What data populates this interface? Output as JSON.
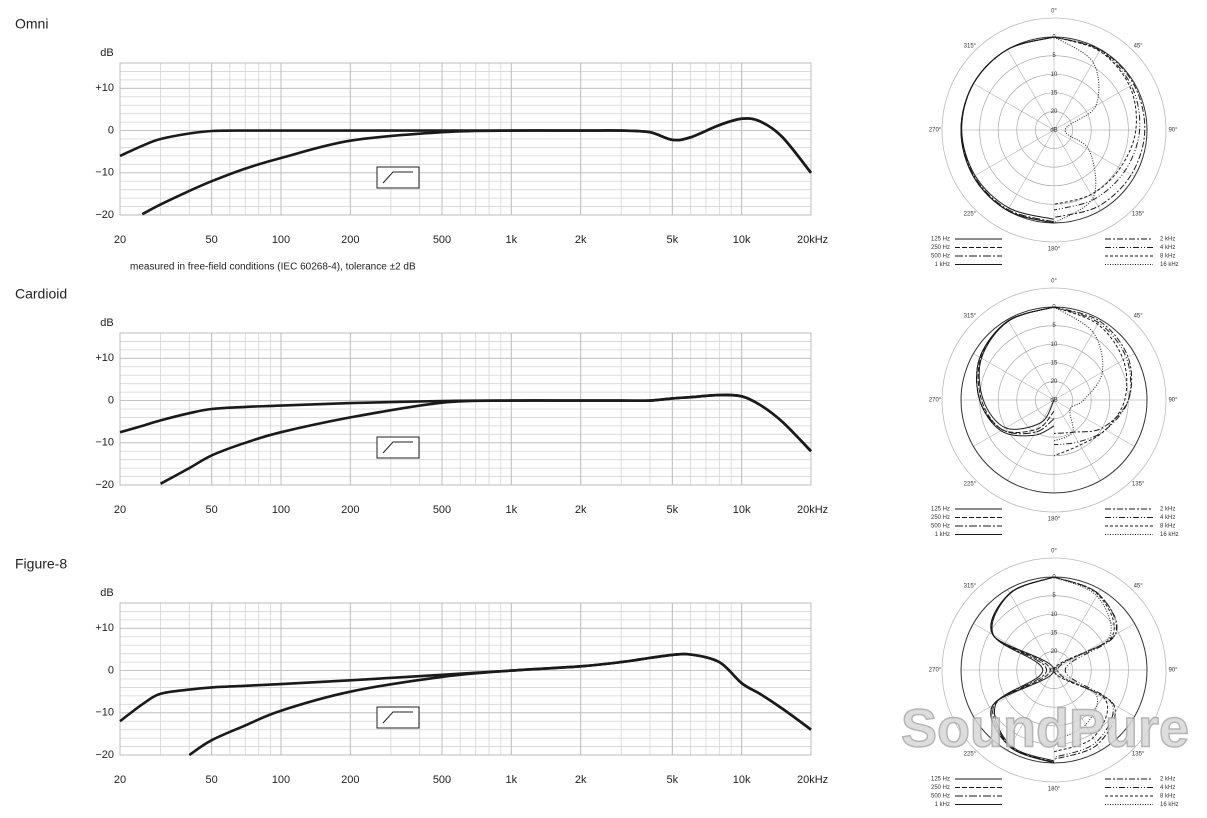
{
  "chart_data": [
    {
      "type": "line",
      "title": "Omni",
      "ylabel": "dB",
      "note": "measured in free-field conditions (IEC 60268-4), tolerance ±2 dB",
      "xscale": "log",
      "grid": true,
      "xlim": [
        20,
        20000
      ],
      "ylim": [
        -20,
        16
      ],
      "xticks": [
        20,
        50,
        100,
        200,
        500,
        {
          "value": 1000,
          "label": "1k"
        },
        {
          "value": 2000,
          "label": "2k"
        },
        {
          "value": 5000,
          "label": "5k"
        },
        {
          "value": 10000,
          "label": "10k"
        },
        {
          "value": 20000,
          "label": "20kHz"
        }
      ],
      "yticks": [
        {
          "value": -20,
          "label": "−20"
        },
        {
          "value": -10,
          "label": "−10"
        },
        0,
        {
          "value": 10,
          "label": "+10"
        }
      ],
      "x": [
        20,
        25,
        30,
        40,
        50,
        70,
        100,
        200,
        500,
        1000,
        2000,
        3000,
        4000,
        5000,
        6000,
        8000,
        10000,
        12000,
        15000,
        20000
      ],
      "series": [
        {
          "color": "#1a1a1a",
          "values": [
            -6,
            -3.6,
            -2,
            -0.7,
            -0.1,
            0,
            0,
            0,
            0,
            0,
            0,
            0,
            -0.4,
            -2.2,
            -1.6,
            1.3,
            2.8,
            2.2,
            -1.5,
            -10
          ]
        },
        {
          "color": "#1a1a1a",
          "values": [
            null,
            -19.8,
            -17.5,
            -14.3,
            -12,
            -9,
            -6.5,
            -2.4,
            -0.4,
            0,
            0,
            0,
            -0.4,
            -2.2,
            -1.6,
            1.3,
            2.8,
            2.2,
            -1.5,
            -10
          ]
        }
      ]
    },
    {
      "type": "polar",
      "theta": [
        -180,
        -150,
        -120,
        -90,
        -60,
        -30,
        0,
        30,
        60,
        90,
        120,
        150,
        180
      ],
      "rlim": [
        0,
        25
      ],
      "rticks": [
        0,
        5,
        10,
        15,
        20,
        {
          "value": 25,
          "label": "dB"
        }
      ],
      "angle_labels": [
        {
          "value": 0,
          "label": "0°"
        },
        {
          "value": 45,
          "label": "45°"
        },
        {
          "value": 90,
          "label": "90°"
        },
        {
          "value": 135,
          "label": "135°"
        },
        {
          "value": 180,
          "label": "180°"
        },
        {
          "value": 225,
          "label": "225°"
        },
        {
          "value": 270,
          "label": "270°"
        },
        {
          "value": 315,
          "label": "315°"
        }
      ],
      "series": [
        {
          "name": "125 Hz",
          "color": "#1a1a1a",
          "dash": "none",
          "values": [
            0,
            0,
            0,
            0,
            0,
            0,
            0,
            null,
            null,
            null,
            null,
            null,
            null
          ]
        },
        {
          "name": "250 Hz",
          "color": "#1a1a1a",
          "dash": "5 2",
          "values": [
            0,
            0,
            0,
            0,
            0,
            0,
            0,
            null,
            null,
            null,
            null,
            null,
            null
          ]
        },
        {
          "name": "500 Hz",
          "color": "#1a1a1a",
          "dash": "8 2 2 2",
          "values": [
            0.3,
            0.3,
            0.2,
            0.1,
            0,
            0,
            0,
            null,
            null,
            null,
            null,
            null,
            null
          ]
        },
        {
          "name": "1 kHz",
          "color": "#1a1a1a",
          "dash": "none",
          "values": [
            1,
            0.8,
            0.5,
            0.2,
            0,
            0,
            0,
            null,
            null,
            null,
            null,
            null,
            null
          ]
        },
        {
          "name": "2 kHz",
          "color": "#1a1a1a",
          "dash": "6 2 2 2",
          "values": [
            null,
            null,
            null,
            null,
            null,
            null,
            0,
            0.1,
            0.3,
            0.6,
            1,
            1.3,
            1.5
          ]
        },
        {
          "name": "4 kHz",
          "color": "#1a1a1a",
          "dash": "6 2 1 2 1 2",
          "values": [
            null,
            null,
            null,
            null,
            null,
            null,
            0,
            0.3,
            1,
            2,
            3,
            3.5,
            3.5
          ]
        },
        {
          "name": "8 kHz",
          "color": "#1a1a1a",
          "dash": "3 2",
          "values": [
            null,
            null,
            null,
            null,
            null,
            null,
            0,
            0.5,
            1.5,
            3,
            4.5,
            5,
            5
          ]
        },
        {
          "name": "16 kHz",
          "color": "#1a1a1a",
          "dash": "1 1.5",
          "values": [
            null,
            null,
            null,
            null,
            null,
            null,
            0,
            4,
            12,
            22,
            14,
            4,
            0
          ]
        }
      ]
    },
    {
      "type": "line",
      "title": "Cardioid",
      "ylabel": "dB",
      "xscale": "log",
      "grid": true,
      "xlim": [
        20,
        20000
      ],
      "ylim": [
        -20,
        16
      ],
      "xticks": [
        20,
        50,
        100,
        200,
        500,
        {
          "value": 1000,
          "label": "1k"
        },
        {
          "value": 2000,
          "label": "2k"
        },
        {
          "value": 5000,
          "label": "5k"
        },
        {
          "value": 10000,
          "label": "10k"
        },
        {
          "value": 20000,
          "label": "20kHz"
        }
      ],
      "yticks": [
        {
          "value": -20,
          "label": "−20"
        },
        {
          "value": -10,
          "label": "−10"
        },
        0,
        {
          "value": 10,
          "label": "+10"
        }
      ],
      "x": [
        20,
        25,
        30,
        40,
        50,
        70,
        100,
        200,
        500,
        1000,
        2000,
        3000,
        4000,
        5000,
        6000,
        8000,
        10000,
        12000,
        15000,
        20000
      ],
      "series": [
        {
          "color": "#1a1a1a",
          "values": [
            -7.5,
            -6,
            -4.7,
            -3,
            -2,
            -1.5,
            -1.2,
            -0.6,
            -0.1,
            0,
            0,
            0,
            0,
            0.5,
            0.8,
            1.3,
            1,
            -1,
            -5,
            -12
          ]
        },
        {
          "color": "#1a1a1a",
          "values": [
            null,
            null,
            -19.7,
            -16,
            -13,
            -10,
            -7.5,
            -4,
            -0.5,
            0,
            0,
            0,
            0,
            0.5,
            0.8,
            1.3,
            1,
            -1,
            -5,
            -12
          ]
        }
      ]
    },
    {
      "type": "polar",
      "theta": [
        -180,
        -150,
        -120,
        -90,
        -60,
        -30,
        0,
        30,
        60,
        90,
        120,
        150,
        180
      ],
      "rlim": [
        0,
        25
      ],
      "rticks": [
        0,
        5,
        10,
        15,
        20,
        {
          "value": 25,
          "label": "dB"
        }
      ],
      "angle_labels": [
        {
          "value": 0,
          "label": "0°"
        },
        {
          "value": 45,
          "label": "45°"
        },
        {
          "value": 90,
          "label": "90°"
        },
        {
          "value": 135,
          "label": "135°"
        },
        {
          "value": 180,
          "label": "180°"
        },
        {
          "value": 225,
          "label": "225°"
        },
        {
          "value": 270,
          "label": "270°"
        },
        {
          "value": 315,
          "label": "315°"
        }
      ],
      "series": [
        {
          "name": "125 Hz",
          "color": "#1a1a1a",
          "dash": "none",
          "values": [
            25,
            18,
            10,
            6,
            2.5,
            0.5,
            0,
            null,
            null,
            null,
            null,
            null,
            null
          ]
        },
        {
          "name": "250 Hz",
          "color": "#1a1a1a",
          "dash": "5 2",
          "values": [
            22,
            16,
            9,
            5.5,
            2.3,
            0.5,
            0,
            null,
            null,
            null,
            null,
            null,
            null
          ]
        },
        {
          "name": "500 Hz",
          "color": "#1a1a1a",
          "dash": "8 2 2 2",
          "values": [
            20,
            15,
            9,
            5,
            2,
            0.5,
            0,
            null,
            null,
            null,
            null,
            null,
            null
          ]
        },
        {
          "name": "1 kHz",
          "color": "#1a1a1a",
          "dash": "none",
          "values": [
            18,
            14,
            8.5,
            5,
            2,
            0.4,
            0,
            null,
            null,
            null,
            null,
            null,
            null
          ]
        },
        {
          "name": "2 kHz",
          "color": "#1a1a1a",
          "dash": "6 2 2 2",
          "values": [
            null,
            null,
            null,
            null,
            null,
            null,
            0,
            0.5,
            2,
            5,
            10,
            15,
            16
          ]
        },
        {
          "name": "4 kHz",
          "color": "#1a1a1a",
          "dash": "6 2 1 2 1 2",
          "values": [
            null,
            null,
            null,
            null,
            null,
            null,
            0,
            1,
            2.5,
            5,
            9,
            12,
            13
          ]
        },
        {
          "name": "8 kHz",
          "color": "#1a1a1a",
          "dash": "3 2",
          "values": [
            null,
            null,
            null,
            null,
            null,
            null,
            0,
            1.5,
            3.5,
            6,
            9,
            11,
            10
          ]
        },
        {
          "name": "16 kHz",
          "color": "#1a1a1a",
          "dash": "1 1.5",
          "values": [
            null,
            null,
            null,
            null,
            null,
            null,
            0,
            4,
            10,
            17,
            20,
            15,
            14
          ]
        }
      ]
    },
    {
      "type": "line",
      "title": "Figure-8",
      "ylabel": "dB",
      "xscale": "log",
      "grid": true,
      "xlim": [
        20,
        20000
      ],
      "ylim": [
        -20,
        16
      ],
      "xticks": [
        20,
        50,
        100,
        200,
        500,
        {
          "value": 1000,
          "label": "1k"
        },
        {
          "value": 2000,
          "label": "2k"
        },
        {
          "value": 5000,
          "label": "5k"
        },
        {
          "value": 10000,
          "label": "10k"
        },
        {
          "value": 20000,
          "label": "20kHz"
        }
      ],
      "yticks": [
        {
          "value": -20,
          "label": "−20"
        },
        {
          "value": -10,
          "label": "−10"
        },
        0,
        {
          "value": 10,
          "label": "+10"
        }
      ],
      "x": [
        20,
        25,
        30,
        40,
        50,
        70,
        100,
        200,
        500,
        1000,
        2000,
        3000,
        4000,
        5000,
        6000,
        8000,
        10000,
        12000,
        15000,
        20000
      ],
      "series": [
        {
          "color": "#1a1a1a",
          "values": [
            -12,
            -8,
            -5.5,
            -4.5,
            -4,
            -3.6,
            -3.2,
            -2.3,
            -1,
            0,
            1,
            2,
            3,
            3.7,
            3.8,
            2,
            -3,
            -5.5,
            -9,
            -14
          ]
        },
        {
          "color": "#1a1a1a",
          "values": [
            null,
            null,
            null,
            -20,
            -16.5,
            -13,
            -9.5,
            -5,
            -1.5,
            0,
            1,
            2,
            3,
            3.7,
            3.8,
            2,
            -3,
            -5.5,
            -9,
            -14
          ]
        }
      ]
    },
    {
      "type": "polar",
      "theta": [
        -180,
        -150,
        -120,
        -90,
        -60,
        -30,
        0,
        30,
        60,
        90,
        120,
        150,
        180
      ],
      "rlim": [
        0,
        25
      ],
      "rticks": [
        0,
        5,
        10,
        15,
        20,
        {
          "value": 25,
          "label": "dB"
        }
      ],
      "angle_labels": [
        {
          "value": 0,
          "label": "0°"
        },
        {
          "value": 45,
          "label": "45°"
        },
        {
          "value": 90,
          "label": "90°"
        },
        {
          "value": 135,
          "label": "135°"
        },
        {
          "value": 180,
          "label": "180°"
        },
        {
          "value": 225,
          "label": "225°"
        },
        {
          "value": 270,
          "label": "270°"
        },
        {
          "value": 315,
          "label": "315°"
        }
      ],
      "series": [
        {
          "name": "125 Hz",
          "color": "#1a1a1a",
          "dash": "none",
          "values": [
            0,
            1.2,
            6,
            25,
            6,
            1.2,
            0,
            null,
            null,
            null,
            null,
            null,
            null
          ]
        },
        {
          "name": "250 Hz",
          "color": "#1a1a1a",
          "dash": "5 2",
          "values": [
            0,
            1.3,
            6,
            24,
            6,
            1.2,
            0,
            null,
            null,
            null,
            null,
            null,
            null
          ]
        },
        {
          "name": "500 Hz",
          "color": "#1a1a1a",
          "dash": "8 2 2 2",
          "values": [
            0.2,
            1.4,
            6.5,
            23,
            6,
            1.3,
            0,
            null,
            null,
            null,
            null,
            null,
            null
          ]
        },
        {
          "name": "1 kHz",
          "color": "#1a1a1a",
          "dash": "none",
          "values": [
            0.5,
            1.6,
            7,
            22,
            6.2,
            1.3,
            0,
            null,
            null,
            null,
            null,
            null,
            null
          ]
        },
        {
          "name": "2 kHz",
          "color": "#1a1a1a",
          "dash": "6 2 2 2",
          "values": [
            null,
            null,
            null,
            null,
            null,
            null,
            0,
            1.3,
            6,
            24,
            6.5,
            1.8,
            1
          ]
        },
        {
          "name": "4 kHz",
          "color": "#1a1a1a",
          "dash": "6 2 1 2 1 2",
          "values": [
            null,
            null,
            null,
            null,
            null,
            null,
            0,
            1.3,
            6,
            22,
            7,
            2.5,
            1.5
          ]
        },
        {
          "name": "8 kHz",
          "color": "#1a1a1a",
          "dash": "3 2",
          "values": [
            null,
            null,
            null,
            null,
            null,
            null,
            0,
            1.5,
            7,
            25,
            9,
            4,
            3
          ]
        },
        {
          "name": "16 kHz",
          "color": "#1a1a1a",
          "dash": "1 1.5",
          "values": [
            null,
            null,
            null,
            null,
            null,
            null,
            0,
            2,
            8,
            25,
            12,
            8,
            6
          ]
        }
      ]
    }
  ],
  "watermark": "SoundPure"
}
